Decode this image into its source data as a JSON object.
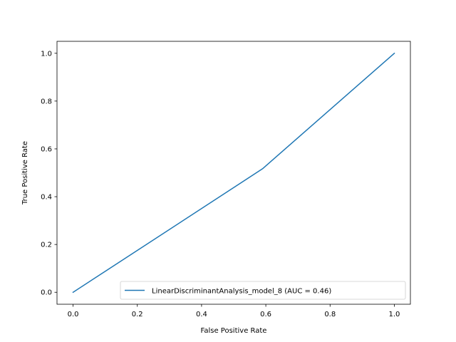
{
  "chart_data": {
    "type": "line",
    "title": "",
    "xlabel": "False Positive Rate",
    "ylabel": "True Positive Rate",
    "xlim": [
      -0.05,
      1.05
    ],
    "ylim": [
      -0.05,
      1.05
    ],
    "xticks": [
      0.0,
      0.2,
      0.4,
      0.6,
      0.8,
      1.0
    ],
    "yticks": [
      0.0,
      0.2,
      0.4,
      0.6,
      0.8,
      1.0
    ],
    "xtick_labels": [
      "0.0",
      "0.2",
      "0.4",
      "0.6",
      "0.8",
      "1.0"
    ],
    "ytick_labels": [
      "0.0",
      "0.2",
      "0.4",
      "0.6",
      "0.8",
      "1.0"
    ],
    "grid": false,
    "legend_position": "lower-right",
    "series": [
      {
        "name": "LinearDiscriminantAnalysis_model_8 (AUC = 0.46)",
        "color": "#1f77b4",
        "x": [
          0.0,
          0.59,
          1.0
        ],
        "y": [
          0.0,
          0.517,
          1.0
        ]
      }
    ]
  }
}
